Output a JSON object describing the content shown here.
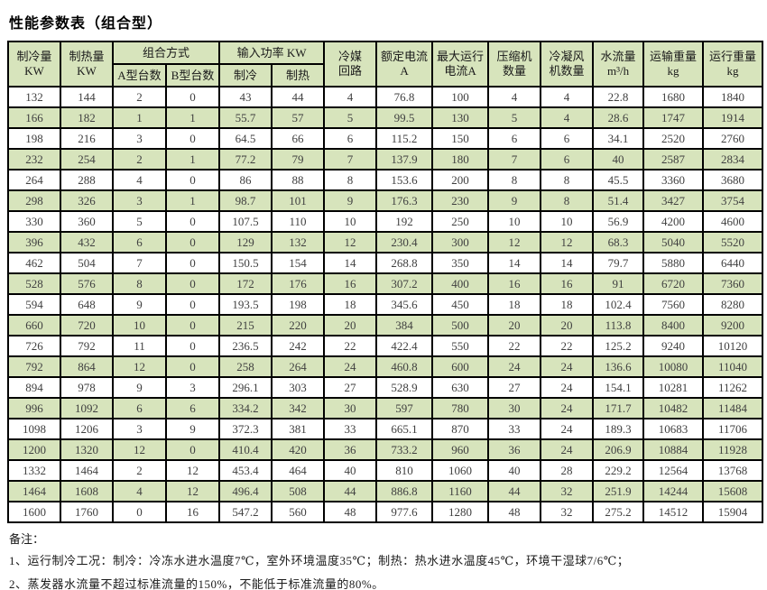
{
  "title": "性能参数表（组合型）",
  "colors": {
    "row_alt_green": "#d7e4bc",
    "row_white": "#ffffff",
    "border": "#000000"
  },
  "table": {
    "header": {
      "cooling_capacity": "制冷量\nKW",
      "heating_capacity": "制热量\nKW",
      "combination_mode": "组合方式",
      "type_a_units": "A型台数",
      "type_b_units": "B型台数",
      "input_power": "输入功率 KW",
      "cooling": "制冷",
      "heating": "制热",
      "refrigerant_circuits": "冷媒\n回路",
      "rated_current": "额定电流\nA",
      "max_running_current": "最大运行\n电流A",
      "compressor_count": "压缩机\n数量",
      "condenser_fan_count": "冷凝风\n机数量",
      "water_flow": "水流量\nm³/h",
      "transport_weight": "运输重量\nkg",
      "running_weight": "运行重量\nkg"
    },
    "rows": [
      [
        132,
        144,
        2,
        0,
        43,
        44,
        4,
        76.8,
        100,
        4,
        4,
        22.8,
        1680,
        1840
      ],
      [
        166,
        182,
        1,
        1,
        55.7,
        57,
        5,
        99.5,
        130,
        5,
        4,
        28.6,
        1747,
        1914
      ],
      [
        198,
        216,
        3,
        0,
        64.5,
        66,
        6,
        115.2,
        150,
        6,
        6,
        34.1,
        2520,
        2760
      ],
      [
        232,
        254,
        2,
        1,
        77.2,
        79,
        7,
        137.9,
        180,
        7,
        6,
        40,
        2587,
        2834
      ],
      [
        264,
        288,
        4,
        0,
        86,
        88,
        8,
        153.6,
        200,
        8,
        8,
        45.5,
        3360,
        3680
      ],
      [
        298,
        326,
        3,
        1,
        98.7,
        101,
        9,
        176.3,
        230,
        9,
        8,
        51.4,
        3427,
        3754
      ],
      [
        330,
        360,
        5,
        0,
        107.5,
        110,
        10,
        192,
        250,
        10,
        10,
        56.9,
        4200,
        4600
      ],
      [
        396,
        432,
        6,
        0,
        129,
        132,
        12,
        230.4,
        300,
        12,
        12,
        68.3,
        5040,
        5520
      ],
      [
        462,
        504,
        7,
        0,
        150.5,
        154,
        14,
        268.8,
        350,
        14,
        14,
        79.7,
        5880,
        6440
      ],
      [
        528,
        576,
        8,
        0,
        172,
        176,
        16,
        307.2,
        400,
        16,
        16,
        91,
        6720,
        7360
      ],
      [
        594,
        648,
        9,
        0,
        193.5,
        198,
        18,
        345.6,
        450,
        18,
        18,
        102.4,
        7560,
        8280
      ],
      [
        660,
        720,
        10,
        0,
        215,
        220,
        20,
        384,
        500,
        20,
        20,
        113.8,
        8400,
        9200
      ],
      [
        726,
        792,
        11,
        0,
        236.5,
        242,
        22,
        422.4,
        550,
        22,
        22,
        125.2,
        9240,
        10120
      ],
      [
        792,
        864,
        12,
        0,
        258,
        264,
        24,
        460.8,
        600,
        24,
        24,
        136.6,
        10080,
        11040
      ],
      [
        894,
        978,
        9,
        3,
        296.1,
        303,
        27,
        528.9,
        630,
        27,
        24,
        154.1,
        10281,
        11262
      ],
      [
        996,
        1092,
        6,
        6,
        334.2,
        342,
        30,
        597,
        780,
        30,
        24,
        171.7,
        10482,
        11484
      ],
      [
        1098,
        1206,
        3,
        9,
        372.3,
        381,
        33,
        665.1,
        870,
        33,
        24,
        189.3,
        10683,
        11706
      ],
      [
        1200,
        1320,
        12,
        0,
        410.4,
        420,
        36,
        733.2,
        960,
        36,
        24,
        206.9,
        10884,
        11928
      ],
      [
        1332,
        1464,
        2,
        12,
        453.4,
        464,
        40,
        810,
        1060,
        40,
        28,
        229.2,
        12564,
        13768
      ],
      [
        1464,
        1608,
        4,
        12,
        496.4,
        508,
        44,
        886.8,
        1160,
        44,
        32,
        251.9,
        14244,
        15608
      ],
      [
        1600,
        1760,
        0,
        16,
        547.2,
        560,
        48,
        977.6,
        1280,
        48,
        32,
        275.2,
        14512,
        15904
      ]
    ]
  },
  "notes": {
    "label": "备注：",
    "items": [
      "1、运行制冷工况：制冷：冷冻水进水温度7℃，室外环境温度35℃；制热：热水进水温度45℃，环境干湿球7/6℃；",
      "2、蒸发器水流量不超过标准流量的150%，不能低于标准流量的80%。"
    ]
  }
}
